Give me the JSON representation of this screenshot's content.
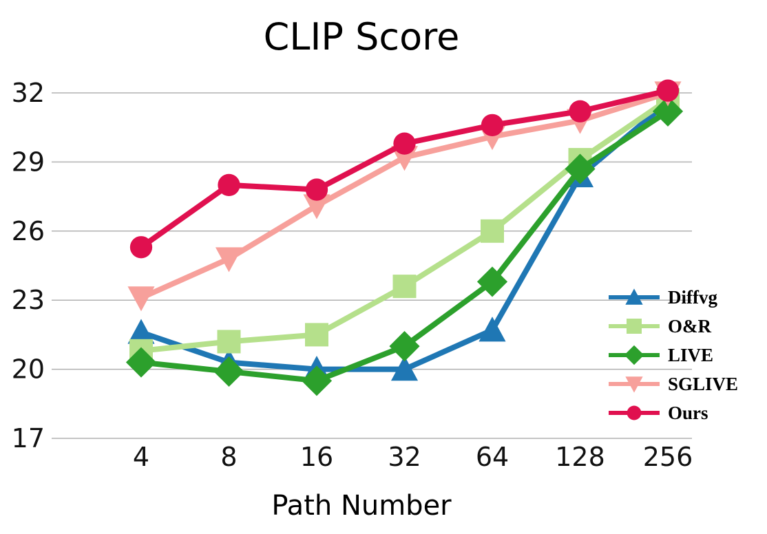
{
  "chart_data": {
    "type": "line",
    "title": "CLIP Score",
    "xlabel": "Path Number",
    "ylabel": "",
    "categories": [
      "4",
      "8",
      "16",
      "32",
      "64",
      "128",
      "256"
    ],
    "yticks": [
      17,
      20,
      23,
      26,
      29,
      32
    ],
    "ylim": [
      17,
      32.5
    ],
    "grid": "horizontal",
    "legend_position": "bottom-right",
    "series": [
      {
        "name": "Diffvg",
        "color": "#1f77b4",
        "marker": "triangle-up",
        "values": [
          21.6,
          20.3,
          20.0,
          20.0,
          21.7,
          28.4,
          31.6
        ]
      },
      {
        "name": "O&R",
        "color": "#b5e08b",
        "marker": "square",
        "values": [
          20.8,
          21.2,
          21.5,
          23.6,
          26.0,
          29.1,
          31.7
        ]
      },
      {
        "name": "LIVE",
        "color": "#2ca02c",
        "marker": "diamond",
        "values": [
          20.3,
          19.9,
          19.5,
          21.0,
          23.8,
          28.7,
          31.2
        ]
      },
      {
        "name": "SGLIVE",
        "color": "#f7a09b",
        "marker": "triangle-down",
        "values": [
          23.1,
          24.8,
          27.1,
          29.2,
          30.1,
          30.8,
          32.0
        ]
      },
      {
        "name": "Ours",
        "color": "#e0104f",
        "marker": "circle",
        "values": [
          25.3,
          28.0,
          27.8,
          29.8,
          30.6,
          31.2,
          32.1
        ]
      }
    ]
  }
}
